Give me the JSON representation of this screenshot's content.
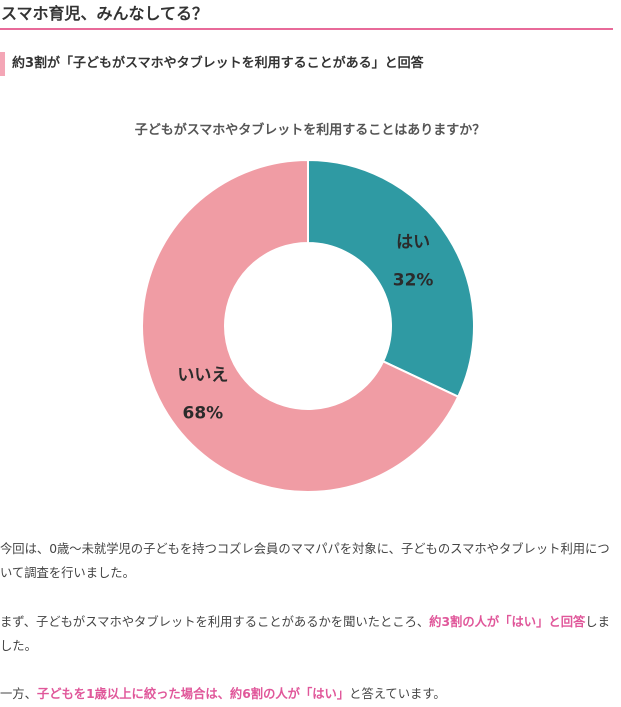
{
  "section": {
    "heading": "スマホ育児、みんなしてる？",
    "subheading": "約3割が「子どもがスマホやタブレットを利用することがある」と回答"
  },
  "chart_data": {
    "type": "pie",
    "donut": true,
    "title": "子どもがスマホやタブレットを利用することはありますか？",
    "categories": [
      "はい",
      "いいえ"
    ],
    "values": [
      32,
      68
    ],
    "value_labels": [
      "32%",
      "68%"
    ],
    "colors": [
      "#2f9aa3",
      "#f09ca4"
    ],
    "start": "top, clockwise"
  },
  "paragraphs": {
    "p1": "今回は、0歳〜未就学児の子どもを持つコズレ会員のママパパを対象に、子どものスマホやタブレット利用について調査を行いました。",
    "p2_before": "まず、子どもがスマホやタブレットを利用することがあるかを聞いたところ、",
    "p2_highlight": "約3割の人が「はい」と回答",
    "p2_after": "しました。",
    "p3_before": "一方、",
    "p3_highlight": "子どもを1歳以上に絞った場合は、約6割の人が「はい」",
    "p3_after": "と答えています。"
  },
  "colors": {
    "accent_pink": "#e86a99",
    "highlight_pink": "#e0579a",
    "subheading_bar": "#f4a6b6"
  }
}
